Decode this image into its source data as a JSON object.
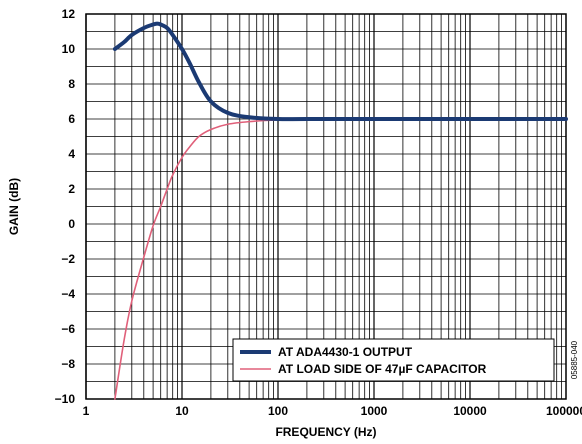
{
  "chart_data": {
    "type": "line",
    "xlabel": "FREQUENCY (Hz)",
    "ylabel": "GAIN (dB)",
    "x_scale": "log",
    "xlim": [
      1,
      100000
    ],
    "ylim": [
      -10,
      12
    ],
    "grid": true,
    "x_tick_labels": [
      "1",
      "10",
      "100",
      "1000",
      "10000",
      "100000"
    ],
    "y_tick_labels": [
      "12",
      "10",
      "8",
      "6",
      "4",
      "2",
      "0",
      "−2",
      "−4",
      "−6",
      "−8",
      "−10"
    ],
    "legend_position": "bottom-right",
    "figure_code": "05885-040",
    "series": [
      {
        "name": "AT ADA4430-1 OUTPUT",
        "color": "#1b3a73",
        "x": [
          2,
          2.5,
          3,
          4,
          5,
          5.5,
          6,
          7,
          8,
          10,
          12,
          15,
          20,
          30,
          50,
          100,
          200,
          1000,
          10000,
          100000
        ],
        "y": [
          10.0,
          10.4,
          10.8,
          11.2,
          11.4,
          11.45,
          11.4,
          11.2,
          10.8,
          10.0,
          9.2,
          8.1,
          7.0,
          6.35,
          6.1,
          6.0,
          6.0,
          6.0,
          6.0,
          6.0
        ]
      },
      {
        "name": "AT LOAD SIDE OF 47µF CAPACITOR",
        "color": "#e0607a",
        "x": [
          2,
          2.5,
          3,
          4,
          5,
          6,
          7,
          8,
          10,
          12,
          15,
          20,
          30,
          50,
          100,
          200,
          1000,
          10000,
          100000
        ],
        "y": [
          -10.0,
          -6.6,
          -4.4,
          -1.9,
          -0.1,
          1.0,
          2.0,
          2.8,
          3.8,
          4.4,
          5.0,
          5.4,
          5.7,
          5.85,
          5.95,
          6.0,
          6.0,
          6.0,
          6.0
        ]
      }
    ]
  }
}
